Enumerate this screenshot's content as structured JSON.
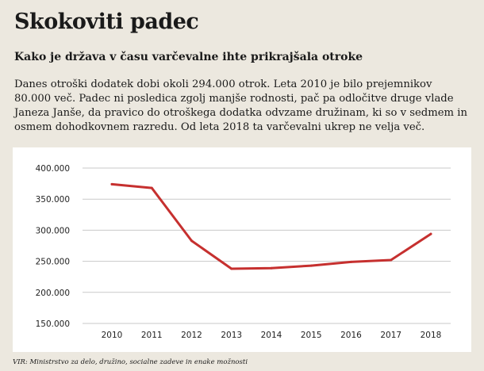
{
  "header": {
    "title": "Skokoviti padec",
    "subtitle": "Kako je država v času varčevalne ihte prikrajšala otroke"
  },
  "body": {
    "text": "Danes otroški dodatek dobi okoli 294.000 otrok. Leta 2010 je bilo prejemnikov 80.000 več. Padec ni posledica zgolj manjše rodnosti, pač pa odločitve druge vlade Janeza Janše, da pravico do otroškega dodatka odvzame družinam, ki so v sedmem in osmem dohodkovnem razredu. Od leta 2018 ta varčevalni ukrep ne velja več."
  },
  "source": "VIR: Ministrstvo za delo, družino, socialne zadeve in enake možnosti",
  "colors": {
    "line": "#c6302f",
    "grid": "#c9c9c9",
    "background": "#ece8df",
    "chart_background": "#ffffff"
  },
  "chart_data": {
    "type": "line",
    "categories": [
      "2010",
      "2011",
      "2012",
      "2013",
      "2014",
      "2015",
      "2016",
      "2017",
      "2018"
    ],
    "values": [
      374000,
      368000,
      283000,
      238000,
      239000,
      243000,
      249000,
      252000,
      294000
    ],
    "ylim": [
      150000,
      400000
    ],
    "yticks": [
      150000,
      200000,
      250000,
      300000,
      350000,
      400000
    ],
    "ytick_labels": [
      "150.000",
      "200.000",
      "250.000",
      "300.000",
      "350.000",
      "400.000"
    ],
    "grid": true,
    "legend": "none"
  }
}
